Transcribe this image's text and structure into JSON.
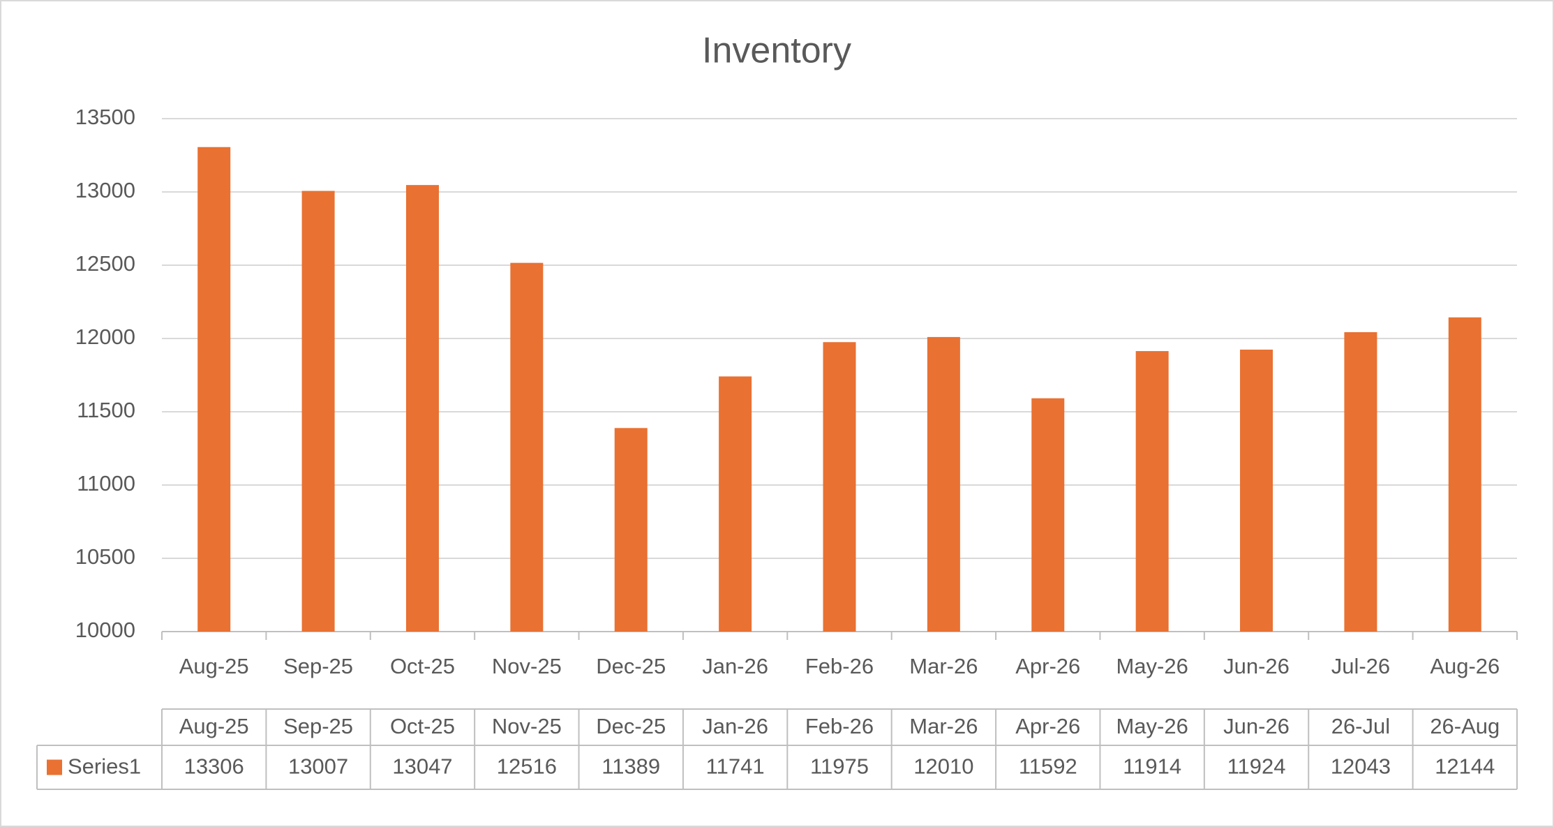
{
  "chart_data": {
    "type": "bar",
    "title": "Inventory",
    "categories": [
      "Aug-25",
      "Sep-25",
      "Oct-25",
      "Nov-25",
      "Dec-25",
      "Jan-26",
      "Feb-26",
      "Mar-26",
      "Apr-26",
      "May-26",
      "Jun-26",
      "Jul-26",
      "Aug-26"
    ],
    "table_categories": [
      "Aug-25",
      "Sep-25",
      "Oct-25",
      "Nov-25",
      "Dec-25",
      "Jan-26",
      "Feb-26",
      "Mar-26",
      "Apr-26",
      "May-26",
      "Jun-26",
      "26-Jul",
      "26-Aug"
    ],
    "series": [
      {
        "name": "Series1",
        "color": "#E97132",
        "values": [
          13306,
          13007,
          13047,
          12516,
          11389,
          11741,
          11975,
          12010,
          11592,
          11914,
          11924,
          12043,
          12144
        ]
      }
    ],
    "ylim": [
      10000,
      13500
    ],
    "yticks": [
      10000,
      10500,
      11000,
      11500,
      12000,
      12500,
      13000,
      13500
    ],
    "grid": true
  }
}
